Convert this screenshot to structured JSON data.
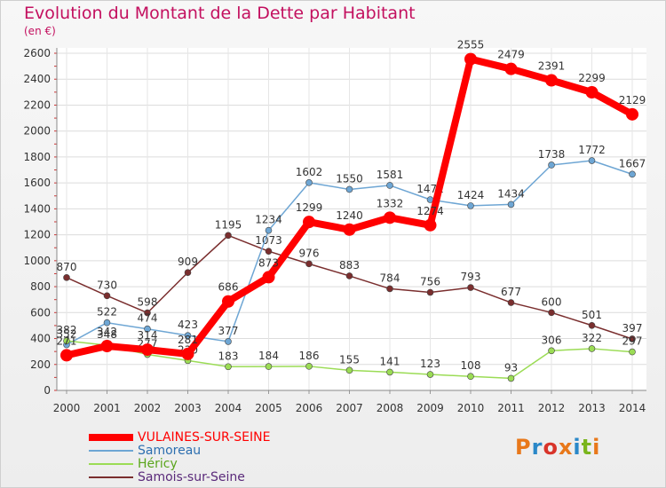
{
  "title": "Evolution du Montant de la Dette par Habitant",
  "subtitle": "(en €)",
  "logo": {
    "text": "Proxiti",
    "colors": [
      "#e8781a",
      "#2b88c8",
      "#d8342a",
      "#e8781a",
      "#2b88c8",
      "#7ab51d",
      "#e8781a"
    ]
  },
  "chart_data": {
    "type": "line",
    "title": "Evolution du Montant de la Dette par Habitant",
    "subtitle": "(en €)",
    "x": [
      "2000",
      "2001",
      "2002",
      "2003",
      "2004",
      "2005",
      "2006",
      "2007",
      "2008",
      "2009",
      "2010",
      "2011",
      "2012",
      "2013",
      "2014"
    ],
    "ylim": [
      0,
      2600
    ],
    "yticks": [
      0,
      200,
      400,
      600,
      800,
      1000,
      1200,
      1400,
      1600,
      1800,
      2000,
      2200,
      2400,
      2600
    ],
    "grid": true,
    "legend_position": "bottom-left",
    "series": [
      {
        "name": "VULAINES-SUR-SEINE",
        "color": "#ff0000",
        "values": [
          271,
          342,
          314,
          281,
          686,
          873,
          1299,
          1240,
          1332,
          1274,
          2555,
          2479,
          2391,
          2299,
          2129
        ]
      },
      {
        "name": "Samoreau",
        "color": "#6ea6d4",
        "values": [
          352,
          522,
          474,
          423,
          377,
          1234,
          1602,
          1550,
          1581,
          1471,
          1424,
          1434,
          1738,
          1772,
          1667
        ]
      },
      {
        "name": "Héricy",
        "color": "#9bdc55",
        "values": [
          382,
          348,
          277,
          230,
          183,
          184,
          186,
          155,
          141,
          123,
          108,
          93,
          306,
          322,
          297
        ]
      },
      {
        "name": "Samois-sur-Seine",
        "color": "#7a2e2e",
        "values": [
          870,
          730,
          598,
          909,
          1195,
          1073,
          976,
          883,
          784,
          756,
          793,
          677,
          600,
          501,
          397
        ]
      }
    ]
  }
}
